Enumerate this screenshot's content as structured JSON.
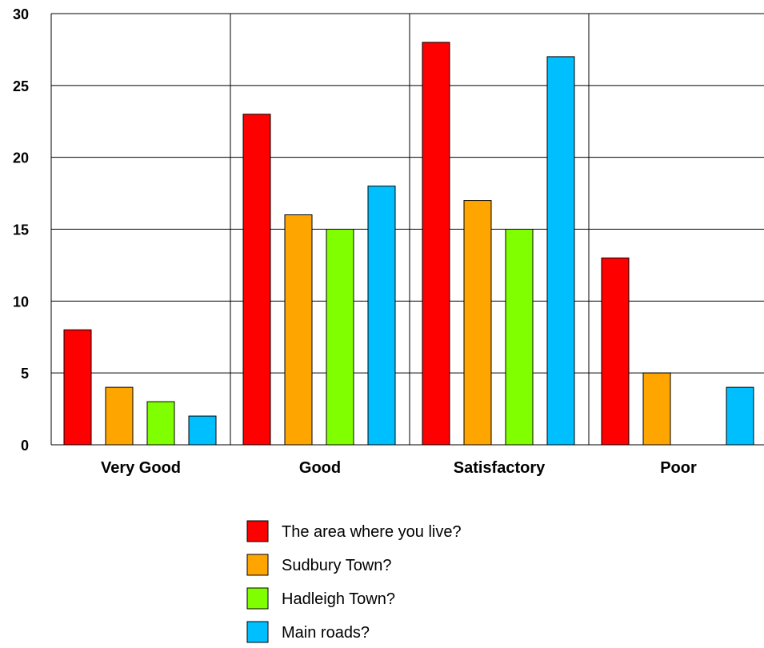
{
  "chart_data": {
    "type": "bar",
    "title": "",
    "xlabel": "",
    "ylabel": "",
    "categories": [
      "Very Good",
      "Good",
      "Satisfactory",
      "Poor"
    ],
    "series": [
      {
        "name": "The area where you live?",
        "color": "#ff0000",
        "values": [
          8,
          23,
          28,
          13
        ]
      },
      {
        "name": "Sudbury Town?",
        "color": "#ffa500",
        "values": [
          4,
          16,
          17,
          5
        ]
      },
      {
        "name": "Hadleigh Town?",
        "color": "#80ff00",
        "values": [
          3,
          15,
          15,
          0
        ]
      },
      {
        "name": "Main roads?",
        "color": "#00bfff",
        "values": [
          2,
          18,
          27,
          4
        ]
      }
    ],
    "ylim": [
      0,
      30
    ],
    "yticks": [
      0,
      5,
      10,
      15,
      20,
      25,
      30
    ],
    "grid": true,
    "legend_position": "bottom-center"
  }
}
